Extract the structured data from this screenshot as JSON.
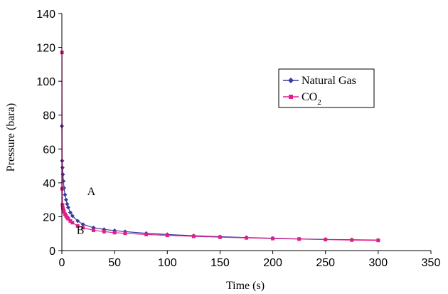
{
  "chart_data": {
    "type": "line",
    "title": "",
    "xlabel": "Time (s)",
    "ylabel": "Pressure (bara)",
    "xlim": [
      0,
      350
    ],
    "ylim": [
      0,
      140
    ],
    "xticks": [
      "0",
      "50",
      "100",
      "150",
      "200",
      "250",
      "300",
      "350"
    ],
    "yticks": [
      "0",
      "20",
      "40",
      "60",
      "80",
      "100",
      "120",
      "140"
    ],
    "grid": false,
    "legend": "upper-right inside",
    "annotations": [
      {
        "text": "A",
        "x": 24,
        "y": 35
      },
      {
        "text": "B",
        "x": 14,
        "y": 12
      }
    ],
    "series": [
      {
        "name": "Natural Gas",
        "color": "#3b3b9e",
        "marker": "diamond",
        "x": [
          0,
          0.3,
          0.6,
          1,
          1.5,
          2,
          3,
          4,
          5,
          6,
          8,
          10,
          15,
          20,
          30,
          40,
          50,
          60,
          80,
          100,
          125,
          150,
          175,
          200,
          225,
          250,
          275,
          300
        ],
        "y": [
          73.5,
          53,
          49,
          45,
          41,
          37,
          33,
          30,
          27.5,
          25.5,
          22.5,
          20.5,
          17.5,
          15.5,
          13.5,
          12.5,
          11.8,
          11.2,
          10.2,
          9.5,
          8.8,
          8.2,
          7.7,
          7.3,
          6.9,
          6.6,
          6.4,
          6.2
        ]
      },
      {
        "name": "CO2",
        "legend_label_main": "CO",
        "legend_label_sub": "2",
        "color": "#e0208a",
        "marker": "square",
        "x": [
          0.1,
          0.3,
          0.6,
          1,
          1.5,
          2,
          3,
          4,
          5,
          6,
          8,
          10,
          15,
          20,
          30,
          40,
          50,
          60,
          80,
          100,
          125,
          150,
          175,
          200,
          225,
          250,
          275,
          300
        ],
        "y": [
          117,
          36.5,
          27,
          25,
          24,
          23,
          21.5,
          20.5,
          19.5,
          18.8,
          17.5,
          16.5,
          14.5,
          13.5,
          12,
          11.2,
          10.6,
          10.2,
          9.5,
          9,
          8.4,
          7.9,
          7.5,
          7.1,
          6.8,
          6.5,
          6.2,
          6
        ]
      }
    ]
  }
}
